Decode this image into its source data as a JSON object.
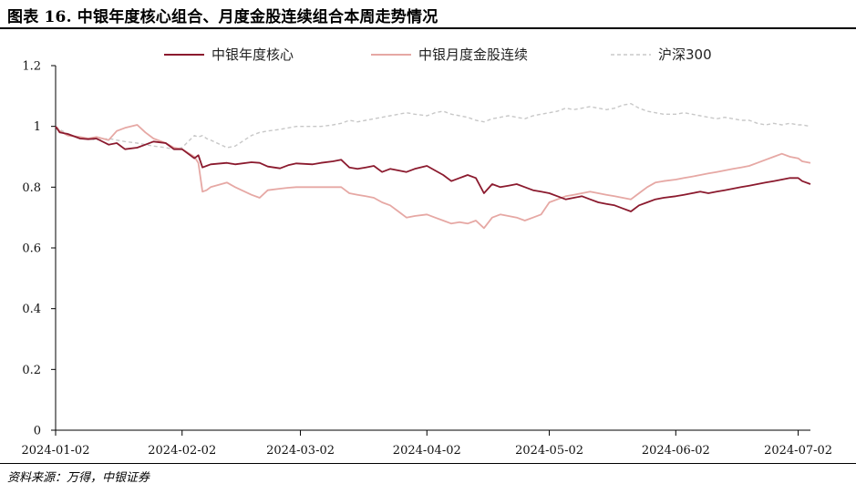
{
  "header": {
    "title": "图表 16. 中银年度核心组合、月度金股连续组合本周走势情况"
  },
  "footer": {
    "source": "资料来源：万得，中银证券"
  },
  "colors": {
    "series_1": "#8b1a2e",
    "series_2": "#e6a8a4",
    "series_3": "#c8c8c8"
  },
  "chart_data": {
    "type": "line",
    "title": "",
    "xlabel": "",
    "ylabel": "",
    "ylim": [
      0,
      1.2
    ],
    "yticks": [
      "0",
      "0.2",
      "0.4",
      "0.6",
      "0.8",
      "1",
      "1.2"
    ],
    "xlim": [
      "2024-01-02",
      "2024-07-05"
    ],
    "xticks": [
      "2024-01-02",
      "2024-02-02",
      "2024-03-02",
      "2024-04-02",
      "2024-05-02",
      "2024-06-02",
      "2024-07-02"
    ],
    "grid": false,
    "legend_position": "top",
    "series": [
      {
        "name": "中银年度核心",
        "color": "#8b1a2e",
        "style": "solid",
        "points": [
          [
            "2024-01-02",
            1.0
          ],
          [
            "2024-01-03",
            0.98
          ],
          [
            "2024-01-05",
            0.975
          ],
          [
            "2024-01-08",
            0.96
          ],
          [
            "2024-01-10",
            0.958
          ],
          [
            "2024-01-12",
            0.96
          ],
          [
            "2024-01-15",
            0.94
          ],
          [
            "2024-01-17",
            0.945
          ],
          [
            "2024-01-19",
            0.925
          ],
          [
            "2024-01-22",
            0.93
          ],
          [
            "2024-01-24",
            0.94
          ],
          [
            "2024-01-26",
            0.95
          ],
          [
            "2024-01-29",
            0.945
          ],
          [
            "2024-01-31",
            0.925
          ],
          [
            "2024-02-02",
            0.925
          ],
          [
            "2024-02-05",
            0.895
          ],
          [
            "2024-02-06",
            0.905
          ],
          [
            "2024-02-07",
            0.865
          ],
          [
            "2024-02-08",
            0.87
          ],
          [
            "2024-02-09",
            0.875
          ],
          [
            "2024-02-13",
            0.88
          ],
          [
            "2024-02-15",
            0.875
          ],
          [
            "2024-02-19",
            0.882
          ],
          [
            "2024-02-21",
            0.88
          ],
          [
            "2024-02-23",
            0.868
          ],
          [
            "2024-02-26",
            0.862
          ],
          [
            "2024-02-28",
            0.872
          ],
          [
            "2024-03-01",
            0.878
          ],
          [
            "2024-03-05",
            0.875
          ],
          [
            "2024-03-07",
            0.88
          ],
          [
            "2024-03-10",
            0.885
          ],
          [
            "2024-03-12",
            0.89
          ],
          [
            "2024-03-14",
            0.865
          ],
          [
            "2024-03-16",
            0.86
          ],
          [
            "2024-03-18",
            0.865
          ],
          [
            "2024-03-20",
            0.87
          ],
          [
            "2024-03-22",
            0.85
          ],
          [
            "2024-03-24",
            0.86
          ],
          [
            "2024-03-26",
            0.855
          ],
          [
            "2024-03-28",
            0.85
          ],
          [
            "2024-03-30",
            0.86
          ],
          [
            "2024-04-02",
            0.87
          ],
          [
            "2024-04-04",
            0.855
          ],
          [
            "2024-04-06",
            0.84
          ],
          [
            "2024-04-08",
            0.82
          ],
          [
            "2024-04-10",
            0.83
          ],
          [
            "2024-04-12",
            0.84
          ],
          [
            "2024-04-14",
            0.83
          ],
          [
            "2024-04-16",
            0.78
          ],
          [
            "2024-04-18",
            0.81
          ],
          [
            "2024-04-20",
            0.8
          ],
          [
            "2024-04-22",
            0.805
          ],
          [
            "2024-04-24",
            0.81
          ],
          [
            "2024-04-26",
            0.8
          ],
          [
            "2024-04-28",
            0.79
          ],
          [
            "2024-04-30",
            0.785
          ],
          [
            "2024-05-02",
            0.78
          ],
          [
            "2024-05-04",
            0.77
          ],
          [
            "2024-05-06",
            0.76
          ],
          [
            "2024-05-08",
            0.765
          ],
          [
            "2024-05-10",
            0.77
          ],
          [
            "2024-05-12",
            0.76
          ],
          [
            "2024-05-14",
            0.75
          ],
          [
            "2024-05-16",
            0.745
          ],
          [
            "2024-05-18",
            0.74
          ],
          [
            "2024-05-20",
            0.73
          ],
          [
            "2024-05-22",
            0.72
          ],
          [
            "2024-05-24",
            0.74
          ],
          [
            "2024-05-26",
            0.75
          ],
          [
            "2024-05-28",
            0.76
          ],
          [
            "2024-05-30",
            0.765
          ],
          [
            "2024-06-02",
            0.77
          ],
          [
            "2024-06-04",
            0.775
          ],
          [
            "2024-06-06",
            0.78
          ],
          [
            "2024-06-08",
            0.785
          ],
          [
            "2024-06-10",
            0.78
          ],
          [
            "2024-06-12",
            0.785
          ],
          [
            "2024-06-14",
            0.79
          ],
          [
            "2024-06-16",
            0.795
          ],
          [
            "2024-06-18",
            0.8
          ],
          [
            "2024-06-20",
            0.805
          ],
          [
            "2024-06-22",
            0.81
          ],
          [
            "2024-06-24",
            0.815
          ],
          [
            "2024-06-26",
            0.82
          ],
          [
            "2024-06-28",
            0.825
          ],
          [
            "2024-06-30",
            0.83
          ],
          [
            "2024-07-02",
            0.83
          ],
          [
            "2024-07-03",
            0.82
          ],
          [
            "2024-07-05",
            0.81
          ]
        ]
      },
      {
        "name": "中银月度金股连续",
        "color": "#e6a8a4",
        "style": "solid",
        "points": [
          [
            "2024-01-02",
            1.0
          ],
          [
            "2024-01-03",
            0.985
          ],
          [
            "2024-01-05",
            0.97
          ],
          [
            "2024-01-08",
            0.965
          ],
          [
            "2024-01-10",
            0.96
          ],
          [
            "2024-01-12",
            0.965
          ],
          [
            "2024-01-15",
            0.955
          ],
          [
            "2024-01-17",
            0.985
          ],
          [
            "2024-01-19",
            0.995
          ],
          [
            "2024-01-22",
            1.005
          ],
          [
            "2024-01-24",
            0.98
          ],
          [
            "2024-01-26",
            0.96
          ],
          [
            "2024-01-29",
            0.945
          ],
          [
            "2024-01-31",
            0.93
          ],
          [
            "2024-02-02",
            0.925
          ],
          [
            "2024-02-05",
            0.9
          ],
          [
            "2024-02-06",
            0.88
          ],
          [
            "2024-02-07",
            0.785
          ],
          [
            "2024-02-08",
            0.79
          ],
          [
            "2024-02-09",
            0.8
          ],
          [
            "2024-02-13",
            0.815
          ],
          [
            "2024-02-15",
            0.8
          ],
          [
            "2024-02-19",
            0.775
          ],
          [
            "2024-02-21",
            0.765
          ],
          [
            "2024-02-23",
            0.79
          ],
          [
            "2024-02-26",
            0.795
          ],
          [
            "2024-02-28",
            0.798
          ],
          [
            "2024-03-01",
            0.8
          ],
          [
            "2024-03-05",
            0.8
          ],
          [
            "2024-03-07",
            0.8
          ],
          [
            "2024-03-10",
            0.8
          ],
          [
            "2024-03-12",
            0.8
          ],
          [
            "2024-03-14",
            0.78
          ],
          [
            "2024-03-16",
            0.775
          ],
          [
            "2024-03-18",
            0.77
          ],
          [
            "2024-03-20",
            0.765
          ],
          [
            "2024-03-22",
            0.75
          ],
          [
            "2024-03-24",
            0.74
          ],
          [
            "2024-03-26",
            0.72
          ],
          [
            "2024-03-28",
            0.7
          ],
          [
            "2024-03-30",
            0.705
          ],
          [
            "2024-04-02",
            0.71
          ],
          [
            "2024-04-04",
            0.7
          ],
          [
            "2024-04-06",
            0.69
          ],
          [
            "2024-04-08",
            0.68
          ],
          [
            "2024-04-10",
            0.685
          ],
          [
            "2024-04-12",
            0.68
          ],
          [
            "2024-04-14",
            0.69
          ],
          [
            "2024-04-16",
            0.665
          ],
          [
            "2024-04-18",
            0.7
          ],
          [
            "2024-04-20",
            0.71
          ],
          [
            "2024-04-22",
            0.705
          ],
          [
            "2024-04-24",
            0.7
          ],
          [
            "2024-04-26",
            0.69
          ],
          [
            "2024-04-28",
            0.7
          ],
          [
            "2024-04-30",
            0.71
          ],
          [
            "2024-05-02",
            0.75
          ],
          [
            "2024-05-04",
            0.76
          ],
          [
            "2024-05-06",
            0.77
          ],
          [
            "2024-05-08",
            0.775
          ],
          [
            "2024-05-10",
            0.78
          ],
          [
            "2024-05-12",
            0.785
          ],
          [
            "2024-05-14",
            0.78
          ],
          [
            "2024-05-16",
            0.775
          ],
          [
            "2024-05-18",
            0.77
          ],
          [
            "2024-05-20",
            0.765
          ],
          [
            "2024-05-22",
            0.76
          ],
          [
            "2024-05-24",
            0.78
          ],
          [
            "2024-05-26",
            0.8
          ],
          [
            "2024-05-28",
            0.815
          ],
          [
            "2024-05-30",
            0.82
          ],
          [
            "2024-06-02",
            0.825
          ],
          [
            "2024-06-04",
            0.83
          ],
          [
            "2024-06-06",
            0.835
          ],
          [
            "2024-06-08",
            0.84
          ],
          [
            "2024-06-10",
            0.845
          ],
          [
            "2024-06-12",
            0.85
          ],
          [
            "2024-06-14",
            0.855
          ],
          [
            "2024-06-16",
            0.86
          ],
          [
            "2024-06-18",
            0.865
          ],
          [
            "2024-06-20",
            0.87
          ],
          [
            "2024-06-22",
            0.88
          ],
          [
            "2024-06-24",
            0.89
          ],
          [
            "2024-06-26",
            0.9
          ],
          [
            "2024-06-28",
            0.91
          ],
          [
            "2024-06-30",
            0.9
          ],
          [
            "2024-07-02",
            0.895
          ],
          [
            "2024-07-03",
            0.885
          ],
          [
            "2024-07-05",
            0.88
          ]
        ]
      },
      {
        "name": "沪深300",
        "color": "#c8c8c8",
        "style": "dashed",
        "points": [
          [
            "2024-01-02",
            1.0
          ],
          [
            "2024-01-03",
            0.99
          ],
          [
            "2024-01-05",
            0.975
          ],
          [
            "2024-01-08",
            0.96
          ],
          [
            "2024-01-10",
            0.96
          ],
          [
            "2024-01-12",
            0.955
          ],
          [
            "2024-01-15",
            0.96
          ],
          [
            "2024-01-17",
            0.955
          ],
          [
            "2024-01-19",
            0.95
          ],
          [
            "2024-01-22",
            0.945
          ],
          [
            "2024-01-24",
            0.94
          ],
          [
            "2024-01-26",
            0.935
          ],
          [
            "2024-01-29",
            0.93
          ],
          [
            "2024-01-31",
            0.925
          ],
          [
            "2024-02-02",
            0.93
          ],
          [
            "2024-02-05",
            0.97
          ],
          [
            "2024-02-06",
            0.965
          ],
          [
            "2024-02-07",
            0.97
          ],
          [
            "2024-02-08",
            0.96
          ],
          [
            "2024-02-09",
            0.955
          ],
          [
            "2024-02-13",
            0.93
          ],
          [
            "2024-02-15",
            0.935
          ],
          [
            "2024-02-19",
            0.97
          ],
          [
            "2024-02-21",
            0.98
          ],
          [
            "2024-02-23",
            0.985
          ],
          [
            "2024-02-26",
            0.99
          ],
          [
            "2024-02-28",
            0.995
          ],
          [
            "2024-03-01",
            1.0
          ],
          [
            "2024-03-05",
            1.0
          ],
          [
            "2024-03-07",
            1.0
          ],
          [
            "2024-03-10",
            1.005
          ],
          [
            "2024-03-12",
            1.01
          ],
          [
            "2024-03-14",
            1.02
          ],
          [
            "2024-03-16",
            1.015
          ],
          [
            "2024-03-18",
            1.02
          ],
          [
            "2024-03-20",
            1.025
          ],
          [
            "2024-03-22",
            1.03
          ],
          [
            "2024-03-24",
            1.035
          ],
          [
            "2024-03-26",
            1.04
          ],
          [
            "2024-03-28",
            1.045
          ],
          [
            "2024-03-30",
            1.04
          ],
          [
            "2024-04-02",
            1.035
          ],
          [
            "2024-04-04",
            1.045
          ],
          [
            "2024-04-06",
            1.05
          ],
          [
            "2024-04-08",
            1.04
          ],
          [
            "2024-04-10",
            1.035
          ],
          [
            "2024-04-12",
            1.03
          ],
          [
            "2024-04-14",
            1.02
          ],
          [
            "2024-04-16",
            1.015
          ],
          [
            "2024-04-18",
            1.025
          ],
          [
            "2024-04-20",
            1.03
          ],
          [
            "2024-04-22",
            1.035
          ],
          [
            "2024-04-24",
            1.03
          ],
          [
            "2024-04-26",
            1.025
          ],
          [
            "2024-04-28",
            1.035
          ],
          [
            "2024-04-30",
            1.04
          ],
          [
            "2024-05-02",
            1.045
          ],
          [
            "2024-05-04",
            1.05
          ],
          [
            "2024-05-06",
            1.06
          ],
          [
            "2024-05-08",
            1.055
          ],
          [
            "2024-05-10",
            1.06
          ],
          [
            "2024-05-12",
            1.065
          ],
          [
            "2024-05-14",
            1.06
          ],
          [
            "2024-05-16",
            1.055
          ],
          [
            "2024-05-18",
            1.06
          ],
          [
            "2024-05-20",
            1.07
          ],
          [
            "2024-05-22",
            1.075
          ],
          [
            "2024-05-24",
            1.06
          ],
          [
            "2024-05-26",
            1.05
          ],
          [
            "2024-05-28",
            1.045
          ],
          [
            "2024-05-30",
            1.04
          ],
          [
            "2024-06-02",
            1.04
          ],
          [
            "2024-06-04",
            1.045
          ],
          [
            "2024-06-06",
            1.04
          ],
          [
            "2024-06-08",
            1.035
          ],
          [
            "2024-06-10",
            1.03
          ],
          [
            "2024-06-12",
            1.025
          ],
          [
            "2024-06-14",
            1.03
          ],
          [
            "2024-06-16",
            1.025
          ],
          [
            "2024-06-18",
            1.02
          ],
          [
            "2024-06-20",
            1.02
          ],
          [
            "2024-06-22",
            1.01
          ],
          [
            "2024-06-24",
            1.005
          ],
          [
            "2024-06-26",
            1.01
          ],
          [
            "2024-06-28",
            1.005
          ],
          [
            "2024-06-30",
            1.01
          ],
          [
            "2024-07-02",
            1.005
          ],
          [
            "2024-07-03",
            1.005
          ],
          [
            "2024-07-05",
            1.0
          ]
        ]
      }
    ]
  }
}
